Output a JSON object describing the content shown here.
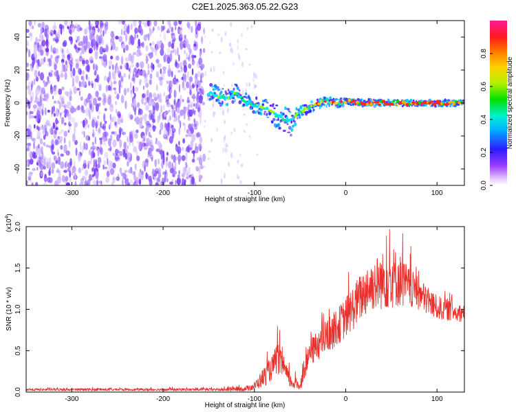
{
  "title": "C2E1.2025.363.05.22.G23",
  "colors": {
    "snr_line": "#e8312c",
    "frame": "#000000",
    "spectrogram_low": "#8a4dff",
    "spectrogram_mid": "#00d5ff",
    "spectrogram_high": "#ff2a1a"
  },
  "chart_data": [
    {
      "type": "heatmap",
      "name": "spectrogram",
      "xlabel": "Height of straight line (km)",
      "ylabel": "Frequency (Hz)",
      "xlim": [
        -350,
        130
      ],
      "ylim": [
        -50,
        50
      ],
      "xticks": [
        -300,
        -200,
        -100,
        0,
        100
      ],
      "xtick_labels": [
        "-300",
        "-200",
        "-100",
        "0",
        "100"
      ],
      "yticks": [
        -40,
        -20,
        0,
        20,
        40
      ],
      "ytick_labels": [
        "-40",
        "-20",
        "0",
        "20",
        "40"
      ],
      "noise_region_x": [
        -350,
        -155
      ],
      "signal_track": {
        "x": [
          -150,
          -140,
          -130,
          -120,
          -110,
          -100,
          -90,
          -80,
          -70,
          -60,
          -50,
          -40,
          -30,
          -20,
          -10,
          0,
          20,
          40,
          60,
          80,
          100,
          130
        ],
        "freq": [
          6,
          4,
          3,
          6,
          1,
          -1,
          -3,
          -6,
          -9,
          -11,
          -5,
          -3,
          0,
          1,
          0,
          1,
          0,
          0,
          0,
          0,
          0,
          0
        ],
        "halfwidth": [
          6,
          6,
          5,
          6,
          5,
          5,
          5,
          7,
          8,
          9,
          3,
          3,
          3,
          3,
          3,
          2,
          2,
          2,
          2,
          2,
          2,
          2
        ]
      },
      "colorbar": {
        "label": "Normalized spectral amplitude",
        "range": [
          0.0,
          1.0
        ],
        "ticks": [
          0.0,
          0.2,
          0.4,
          0.6,
          0.8
        ],
        "tick_labels": [
          "0.0",
          "0.2",
          "0.4",
          "0.6",
          "0.8"
        ]
      }
    },
    {
      "type": "line",
      "name": "snr",
      "xlabel": "Height of straight line (km)",
      "ylabel": "SNR (10 * v/v)",
      "multiplier_label": "(x10",
      "multiplier_exponent": "4",
      "multiplier_close": ")",
      "xlim": [
        -350,
        130
      ],
      "ylim": [
        0.0,
        2.0
      ],
      "xticks": [
        -300,
        -200,
        -100,
        0,
        100
      ],
      "xtick_labels": [
        "-300",
        "-200",
        "-100",
        "0",
        "100"
      ],
      "yticks": [
        0.0,
        0.5,
        1.0,
        1.5,
        2.0
      ],
      "ytick_labels": [
        "0.0",
        "0.5",
        "1.0",
        "1.5",
        "2.0"
      ],
      "envelope": {
        "x": [
          -350,
          -160,
          -130,
          -110,
          -100,
          -90,
          -80,
          -75,
          -70,
          -60,
          -50,
          -40,
          -30,
          -20,
          -10,
          0,
          10,
          20,
          30,
          40,
          50,
          60,
          70,
          80,
          90,
          100,
          110,
          120,
          130
        ],
        "mean": [
          0.03,
          0.03,
          0.03,
          0.04,
          0.07,
          0.18,
          0.3,
          0.42,
          0.32,
          0.12,
          0.08,
          0.45,
          0.58,
          0.68,
          0.78,
          0.9,
          1.05,
          1.2,
          1.3,
          1.34,
          1.4,
          1.35,
          1.25,
          1.18,
          1.1,
          1.02,
          1.0,
          0.97,
          0.95
        ],
        "amp": [
          0.015,
          0.015,
          0.02,
          0.03,
          0.05,
          0.12,
          0.15,
          0.2,
          0.15,
          0.08,
          0.07,
          0.15,
          0.2,
          0.22,
          0.22,
          0.25,
          0.28,
          0.3,
          0.32,
          0.35,
          0.4,
          0.32,
          0.25,
          0.2,
          0.18,
          0.15,
          0.14,
          0.12,
          0.1
        ]
      }
    }
  ]
}
